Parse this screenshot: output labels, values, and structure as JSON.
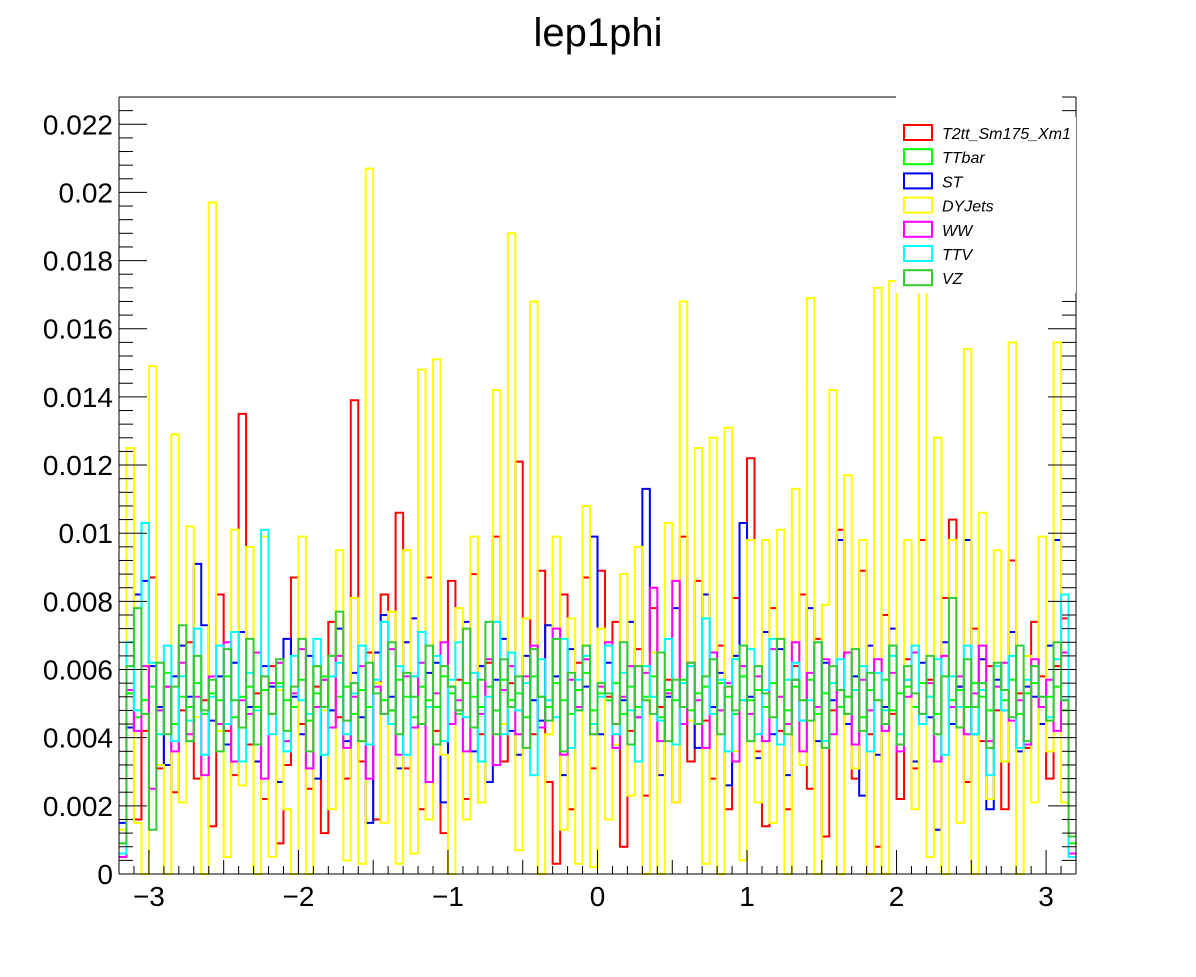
{
  "chart_data": {
    "type": "line",
    "subtype": "step-histogram",
    "title": "lep1phi",
    "xlabel": "",
    "ylabel": "",
    "xlim": [
      -3.2,
      3.2
    ],
    "ylim": [
      0,
      0.0228
    ],
    "n_bins": 128,
    "grid": false,
    "legend_position": "top-right",
    "x_ticks": [
      {
        "value": -3,
        "label": "−3"
      },
      {
        "value": -2,
        "label": "−2"
      },
      {
        "value": -1,
        "label": "−1"
      },
      {
        "value": 0,
        "label": "0"
      },
      {
        "value": 1,
        "label": "1"
      },
      {
        "value": 2,
        "label": "2"
      },
      {
        "value": 3,
        "label": "3"
      }
    ],
    "y_ticks": [
      {
        "value": 0,
        "label": "0"
      },
      {
        "value": 0.002,
        "label": "0.002"
      },
      {
        "value": 0.004,
        "label": "0.004"
      },
      {
        "value": 0.006,
        "label": "0.006"
      },
      {
        "value": 0.008,
        "label": "0.008"
      },
      {
        "value": 0.01,
        "label": "0.01"
      },
      {
        "value": 0.012,
        "label": "0.012"
      },
      {
        "value": 0.014,
        "label": "0.014"
      },
      {
        "value": 0.016,
        "label": "0.016"
      },
      {
        "value": 0.018,
        "label": "0.018"
      },
      {
        "value": 0.02,
        "label": "0.02"
      },
      {
        "value": 0.022,
        "label": "0.022"
      }
    ],
    "series": [
      {
        "name": "T2tt_Sm175_Xm1",
        "color": "#ff0000",
        "values": [
          0.0006,
          0.0053,
          0.0016,
          0.0042,
          0.0087,
          0.0031,
          0.0055,
          0.0024,
          0.0048,
          0.0068,
          0.0028,
          0.0051,
          0.0014,
          0.0082,
          0.0042,
          0.0029,
          0.0135,
          0.0038,
          0.0053,
          0.0022,
          0.0061,
          0.0009,
          0.0032,
          0.0087,
          0.0044,
          0.0025,
          0.0055,
          0.0012,
          0.0074,
          0.0046,
          0.0028,
          0.0139,
          0.0033,
          0.0065,
          0.0016,
          0.0082,
          0.0048,
          0.0106,
          0.0031,
          0.0058,
          0.0019,
          0.0087,
          0.0042,
          0.0012,
          0.0086,
          0.0057,
          0.0022,
          0.0088,
          0.0041,
          0.0062,
          0.0099,
          0.0033,
          0.0056,
          0.0121,
          0.0075,
          0.0041,
          0.0089,
          0.0027,
          0.0003,
          0.0082,
          0.0019,
          0.0062,
          0.0087,
          0.0031,
          0.0089,
          0.0052,
          0.0074,
          0.0008,
          0.0042,
          0.0066,
          0.0023,
          0.0078,
          0.0049,
          0.0057,
          0.0021,
          0.0099,
          0.0033,
          0.0086,
          0.0045,
          0.0028,
          0.0067,
          0.0019,
          0.0081,
          0.0051,
          0.0122,
          0.0036,
          0.0014,
          0.0078,
          0.0042,
          0.0019,
          0.0061,
          0.0082,
          0.0025,
          0.0069,
          0.0011,
          0.0048,
          0.0101,
          0.0052,
          0.0028,
          0.0089,
          0.0041,
          0.0008,
          0.0076,
          0.0047,
          0.0022,
          0.0063,
          0.0031,
          0.0098,
          0.0057,
          0.0033,
          0.0081,
          0.0104,
          0.0055,
          0.0027,
          0.0072,
          0.0039,
          0.0061,
          0.0048,
          0.0019,
          0.0092,
          0.0053,
          0.0037,
          0.0074,
          0.0058,
          0.0028,
          0.0061,
          0.0075,
          0.0005
        ]
      },
      {
        "name": "TTbar",
        "color": "#00ff00",
        "values": [
          0.0009,
          0.0053,
          0.0046,
          0.0051,
          0.0055,
          0.0048,
          0.0059,
          0.0044,
          0.0052,
          0.0049,
          0.0056,
          0.0047,
          0.0053,
          0.0051,
          0.0058,
          0.0046,
          0.0052,
          0.0055,
          0.0049,
          0.0054,
          0.0047,
          0.0056,
          0.0051,
          0.0049,
          0.0057,
          0.0045,
          0.0053,
          0.0058,
          0.0048,
          0.0052,
          0.0055,
          0.0047,
          0.0054,
          0.0049,
          0.0056,
          0.0051,
          0.0048,
          0.0057,
          0.0052,
          0.0046,
          0.0055,
          0.0051,
          0.0049,
          0.0058,
          0.0053,
          0.0047,
          0.0056,
          0.0052,
          0.0049,
          0.0055,
          0.0048,
          0.0057,
          0.0051,
          0.0053,
          0.0046,
          0.0058,
          0.0052,
          0.0049,
          0.0056,
          0.0051,
          0.0047,
          0.0054,
          0.0059,
          0.0048,
          0.0053,
          0.0051,
          0.0056,
          0.0047,
          0.0055,
          0.0049,
          0.0052,
          0.0058,
          0.0046,
          0.0054,
          0.0051,
          0.0057,
          0.0048,
          0.0053,
          0.0055,
          0.0049,
          0.0056,
          0.0052,
          0.0047,
          0.0058,
          0.0051,
          0.0054,
          0.0049,
          0.0056,
          0.0052,
          0.0048,
          0.0055,
          0.0051,
          0.0057,
          0.0047,
          0.0053,
          0.0056,
          0.0049,
          0.0052,
          0.0058,
          0.0046,
          0.0054,
          0.0051,
          0.0057,
          0.0048,
          0.0053,
          0.0055,
          0.0049,
          0.0056,
          0.0052,
          0.0047,
          0.0058,
          0.0051,
          0.0054,
          0.0049,
          0.0056,
          0.0052,
          0.0048,
          0.0055,
          0.0051,
          0.0057,
          0.0047,
          0.0053,
          0.0056,
          0.0049,
          0.0052,
          0.0055,
          0.0048,
          0.0009
        ]
      },
      {
        "name": "ST",
        "color": "#0000ff",
        "values": [
          0.0015,
          0.0043,
          0.0082,
          0.0086,
          0.0061,
          0.0049,
          0.0032,
          0.0058,
          0.0067,
          0.0052,
          0.0091,
          0.0073,
          0.0045,
          0.0058,
          0.0038,
          0.0062,
          0.0071,
          0.0049,
          0.0033,
          0.0061,
          0.0055,
          0.0027,
          0.0069,
          0.0052,
          0.0041,
          0.0064,
          0.0028,
          0.0057,
          0.0048,
          0.0072,
          0.0039,
          0.0059,
          0.0046,
          0.0015,
          0.0065,
          0.0076,
          0.0052,
          0.0031,
          0.0068,
          0.0075,
          0.0044,
          0.0059,
          0.0062,
          0.0021,
          0.0055,
          0.0048,
          0.0074,
          0.0036,
          0.0061,
          0.0027,
          0.0057,
          0.0069,
          0.0042,
          0.0035,
          0.0064,
          0.0051,
          0.0045,
          0.0073,
          0.0058,
          0.0029,
          0.0066,
          0.0049,
          0.0055,
          0.0099,
          0.0041,
          0.0062,
          0.0037,
          0.0051,
          0.0074,
          0.0046,
          0.0113,
          0.0065,
          0.0029,
          0.0052,
          0.0078,
          0.0044,
          0.0061,
          0.0037,
          0.0082,
          0.0049,
          0.0059,
          0.0026,
          0.0064,
          0.0103,
          0.0052,
          0.0034,
          0.0071,
          0.0041,
          0.0066,
          0.0029,
          0.0057,
          0.0045,
          0.0078,
          0.0039,
          0.0062,
          0.0051,
          0.0098,
          0.0044,
          0.0058,
          0.0023,
          0.0067,
          0.0035,
          0.0049,
          0.0072,
          0.0041,
          0.0057,
          0.0033,
          0.0062,
          0.0046,
          0.0013,
          0.0068,
          0.0044,
          0.0055,
          0.0098,
          0.0041,
          0.0063,
          0.0019,
          0.0057,
          0.0048,
          0.0071,
          0.0036,
          0.0055,
          0.0052,
          0.0044,
          0.0067,
          0.0098,
          0.0051,
          0.0006
        ]
      },
      {
        "name": "DYJets",
        "color": "#ffff00",
        "values": [
          0.0013,
          0.0125,
          0.0015,
          0.0,
          0.0149,
          0.0032,
          0.0,
          0.0129,
          0.0021,
          0.0102,
          0.0046,
          0.0,
          0.0197,
          0.0042,
          0.0005,
          0.0101,
          0.0026,
          0.0096,
          0.0,
          0.0099,
          0.0005,
          0.0054,
          0.0019,
          0.0,
          0.0099,
          0.0,
          0.0061,
          0.0048,
          0.0019,
          0.0095,
          0.0004,
          0.0081,
          0.0003,
          0.0207,
          0.0056,
          0.0015,
          0.0077,
          0.0003,
          0.0095,
          0.0006,
          0.0148,
          0.0016,
          0.0151,
          0.0035,
          0.0,
          0.0078,
          0.0016,
          0.0099,
          0.0021,
          0.0063,
          0.0142,
          0.0044,
          0.0188,
          0.0007,
          0.0075,
          0.0168,
          0.0,
          0.0041,
          0.0099,
          0.0013,
          0.0075,
          0.0003,
          0.0108,
          0.0002,
          0.0072,
          0.0016,
          0.0038,
          0.0088,
          0.0023,
          0.0096,
          0.0,
          0.0065,
          0.0,
          0.0103,
          0.0021,
          0.0168,
          0.0045,
          0.0125,
          0.0003,
          0.0128,
          0.0,
          0.0131,
          0.0036,
          0.0004,
          0.0098,
          0.0021,
          0.0098,
          0.0015,
          0.0101,
          0.0,
          0.0113,
          0.0032,
          0.0169,
          0.0,
          0.0079,
          0.0142,
          0.0,
          0.0117,
          0.0031,
          0.0098,
          0.0,
          0.0172,
          0.0,
          0.0174,
          0.0041,
          0.0098,
          0.0019,
          0.0171,
          0.0005,
          0.0128,
          0.0,
          0.0098,
          0.0015,
          0.0154,
          0.0,
          0.0106,
          0.0022,
          0.0095,
          0.0033,
          0.0156,
          0.0,
          0.0064,
          0.0021,
          0.0099,
          0.0036,
          0.0156,
          0.0021,
          0.0011
        ]
      },
      {
        "name": "WW",
        "color": "#ff00ff",
        "values": [
          0.0005,
          0.0054,
          0.0042,
          0.0061,
          0.0025,
          0.0048,
          0.0055,
          0.0036,
          0.0062,
          0.0041,
          0.0052,
          0.0029,
          0.0058,
          0.0044,
          0.0068,
          0.0033,
          0.0051,
          0.0047,
          0.0065,
          0.0028,
          0.0056,
          0.0062,
          0.0039,
          0.0053,
          0.0066,
          0.0031,
          0.0049,
          0.0057,
          0.0043,
          0.0064,
          0.0037,
          0.0052,
          0.0061,
          0.0028,
          0.0055,
          0.0047,
          0.0066,
          0.0035,
          0.0058,
          0.0043,
          0.0062,
          0.0027,
          0.0053,
          0.0068,
          0.0044,
          0.0051,
          0.0036,
          0.0059,
          0.0047,
          0.0063,
          0.0032,
          0.0054,
          0.0061,
          0.0041,
          0.0058,
          0.0067,
          0.0043,
          0.0051,
          0.0072,
          0.0035,
          0.0057,
          0.0049,
          0.0063,
          0.0041,
          0.0055,
          0.0068,
          0.0037,
          0.0052,
          0.0061,
          0.0046,
          0.0059,
          0.0084,
          0.0039,
          0.0053,
          0.0086,
          0.0044,
          0.0062,
          0.0051,
          0.0037,
          0.0065,
          0.0048,
          0.0056,
          0.0033,
          0.0061,
          0.0047,
          0.0058,
          0.0039,
          0.0066,
          0.0052,
          0.0044,
          0.0068,
          0.0036,
          0.0059,
          0.0049,
          0.0063,
          0.0041,
          0.0054,
          0.0065,
          0.0038,
          0.0057,
          0.0048,
          0.0063,
          0.0042,
          0.0059,
          0.0036,
          0.0052,
          0.0065,
          0.0047,
          0.0056,
          0.0033,
          0.0064,
          0.0049,
          0.0058,
          0.0041,
          0.0053,
          0.0067,
          0.0039,
          0.0055,
          0.0062,
          0.0045,
          0.0051,
          0.0038,
          0.0063,
          0.0049,
          0.0057,
          0.0042,
          0.0065,
          0.0006
        ]
      },
      {
        "name": "TTV",
        "color": "#00ffff",
        "values": [
          0.0006,
          0.0068,
          0.0048,
          0.0103,
          0.0062,
          0.0041,
          0.0067,
          0.0039,
          0.0058,
          0.0045,
          0.0072,
          0.0035,
          0.0052,
          0.0067,
          0.0044,
          0.0071,
          0.0033,
          0.0059,
          0.0048,
          0.0101,
          0.0041,
          0.0055,
          0.0036,
          0.0064,
          0.0051,
          0.0047,
          0.0069,
          0.0035,
          0.0058,
          0.0062,
          0.0041,
          0.0053,
          0.0067,
          0.0038,
          0.0057,
          0.0074,
          0.0044,
          0.0061,
          0.0035,
          0.0058,
          0.0071,
          0.0049,
          0.0064,
          0.0039,
          0.0057,
          0.0068,
          0.0046,
          0.0059,
          0.0033,
          0.0052,
          0.0074,
          0.0041,
          0.0065,
          0.0048,
          0.0056,
          0.0029,
          0.0063,
          0.0051,
          0.0046,
          0.0069,
          0.0037,
          0.0057,
          0.0064,
          0.0044,
          0.0052,
          0.0067,
          0.0041,
          0.0059,
          0.0048,
          0.0033,
          0.0061,
          0.0052,
          0.0045,
          0.0069,
          0.0038,
          0.0056,
          0.0061,
          0.0044,
          0.0075,
          0.0047,
          0.0057,
          0.0036,
          0.0063,
          0.0051,
          0.0066,
          0.0041,
          0.0054,
          0.0069,
          0.0038,
          0.0057,
          0.0062,
          0.0045,
          0.0051,
          0.0068,
          0.0039,
          0.0056,
          0.0063,
          0.0047,
          0.0054,
          0.0061,
          0.0036,
          0.0059,
          0.0048,
          0.0064,
          0.0041,
          0.0057,
          0.0067,
          0.0044,
          0.0052,
          0.0063,
          0.0035,
          0.0058,
          0.0049,
          0.0067,
          0.0041,
          0.0054,
          0.0029,
          0.0061,
          0.0048,
          0.0064,
          0.0037,
          0.0057,
          0.0061,
          0.0052,
          0.0046,
          0.0063,
          0.0082,
          0.0005
        ]
      },
      {
        "name": "VZ",
        "color": "#33cc33",
        "values": [
          0.0009,
          0.0061,
          0.0078,
          0.0047,
          0.0013,
          0.0062,
          0.0041,
          0.0055,
          0.0073,
          0.0039,
          0.0064,
          0.0048,
          0.0057,
          0.0036,
          0.0066,
          0.0051,
          0.0043,
          0.0069,
          0.0038,
          0.0058,
          0.0047,
          0.0063,
          0.0042,
          0.0055,
          0.0069,
          0.0036,
          0.0061,
          0.0049,
          0.0064,
          0.0077,
          0.0045,
          0.0056,
          0.0039,
          0.0062,
          0.0053,
          0.0047,
          0.0068,
          0.0041,
          0.0059,
          0.0052,
          0.0044,
          0.0067,
          0.0038,
          0.0061,
          0.0055,
          0.0048,
          0.0072,
          0.0043,
          0.0057,
          0.0074,
          0.0041,
          0.0063,
          0.0049,
          0.0058,
          0.0037,
          0.0066,
          0.0052,
          0.0045,
          0.0069,
          0.0036,
          0.0059,
          0.0048,
          0.0067,
          0.0041,
          0.0056,
          0.0053,
          0.0044,
          0.0068,
          0.0038,
          0.0061,
          0.0051,
          0.0047,
          0.0065,
          0.0039,
          0.0057,
          0.0049,
          0.0062,
          0.0044,
          0.0058,
          0.0063,
          0.0041,
          0.0055,
          0.0048,
          0.0067,
          0.0039,
          0.0061,
          0.0053,
          0.0046,
          0.0069,
          0.0041,
          0.0057,
          0.0051,
          0.0045,
          0.0068,
          0.0037,
          0.0061,
          0.0054,
          0.0047,
          0.0066,
          0.0042,
          0.0059,
          0.0051,
          0.0044,
          0.0067,
          0.0038,
          0.0061,
          0.0053,
          0.0047,
          0.0064,
          0.0041,
          0.0058,
          0.0081,
          0.0043,
          0.0063,
          0.0049,
          0.0056,
          0.0037,
          0.0062,
          0.0054,
          0.0046,
          0.0067,
          0.0039,
          0.0061,
          0.0052,
          0.0045,
          0.0068,
          0.0051,
          0.0011
        ]
      }
    ]
  }
}
